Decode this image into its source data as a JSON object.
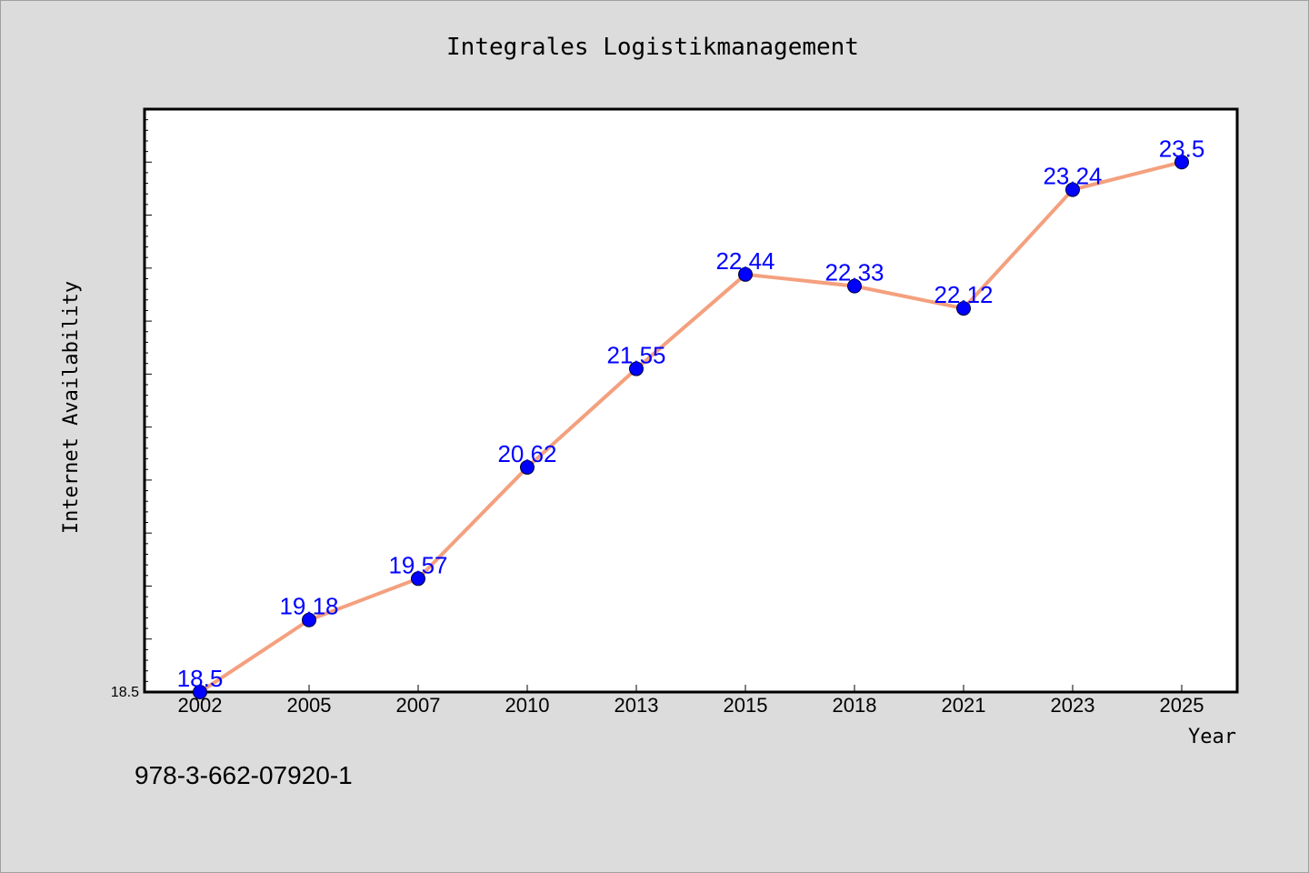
{
  "chart_data": {
    "type": "line",
    "title": "Integrales Logistikmanagement",
    "xlabel": "Year",
    "ylabel": "Internet Availability",
    "categories": [
      "2002",
      "2005",
      "2007",
      "2010",
      "2013",
      "2015",
      "2018",
      "2021",
      "2023",
      "2025"
    ],
    "series": [
      {
        "values": [
          18.5,
          19.18,
          19.57,
          20.62,
          21.55,
          22.44,
          22.33,
          22.12,
          23.24,
          23.5
        ]
      }
    ],
    "data_labels": [
      "18.5",
      "19.18",
      "19.57",
      "20.62",
      "21.55",
      "22.44",
      "22.33",
      "22.12",
      "23.24",
      "23.5"
    ],
    "ytick_labels": [
      "18.5"
    ],
    "ylim": [
      18.5,
      24.0
    ],
    "grid": false,
    "colors": {
      "line": "#f4a07e",
      "marker": "#0000ff",
      "data_label": "#0000ff",
      "background": "#dcdcdc",
      "plot_background": "#ffffff"
    }
  },
  "footer": {
    "isbn": "978-3-662-07920-1"
  }
}
